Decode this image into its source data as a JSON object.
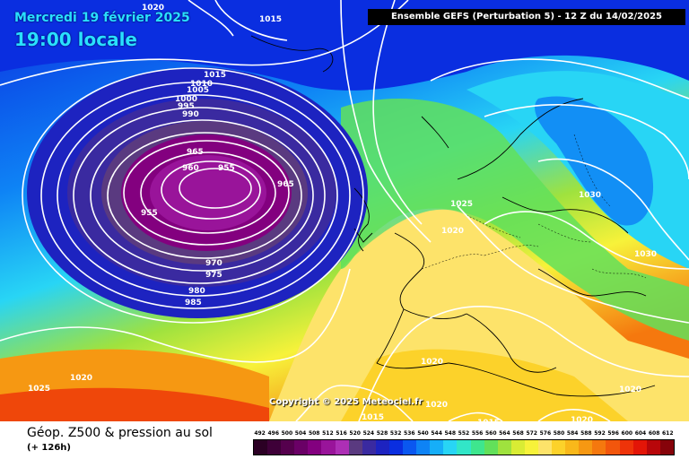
{
  "header": {
    "date": "Mercredi 19 février 2025",
    "time": "19:00 locale",
    "run": "Ensemble GEFS  (Perturbation 5)  -  12 Z du 14/02/2025"
  },
  "copyright": "Copyright © 2025 Meteociel.fr",
  "legend": {
    "title": "Géop. Z500 & pression au sol",
    "subtitle": "(+ 126h)",
    "scale": [
      {
        "value": "492",
        "color": "#2b0024"
      },
      {
        "value": "496",
        "color": "#3e0038"
      },
      {
        "value": "500",
        "color": "#55004d"
      },
      {
        "value": "504",
        "color": "#6a0066"
      },
      {
        "value": "508",
        "color": "#83007f"
      },
      {
        "value": "512",
        "color": "#99149a"
      },
      {
        "value": "516",
        "color": "#ad2fb5"
      },
      {
        "value": "520",
        "color": "#5a3a80"
      },
      {
        "value": "524",
        "color": "#3a2aa0"
      },
      {
        "value": "528",
        "color": "#1d23c0"
      },
      {
        "value": "532",
        "color": "#0a2ee0"
      },
      {
        "value": "536",
        "color": "#0a57f0"
      },
      {
        "value": "540",
        "color": "#0e83f5"
      },
      {
        "value": "544",
        "color": "#16aef8"
      },
      {
        "value": "548",
        "color": "#28d5f5"
      },
      {
        "value": "552",
        "color": "#32e6c8"
      },
      {
        "value": "556",
        "color": "#3ee68e"
      },
      {
        "value": "560",
        "color": "#62e05a"
      },
      {
        "value": "564",
        "color": "#9fe23e"
      },
      {
        "value": "568",
        "color": "#d9ec34"
      },
      {
        "value": "572",
        "color": "#f7f23a"
      },
      {
        "value": "576",
        "color": "#fde36a"
      },
      {
        "value": "580",
        "color": "#fcd22a"
      },
      {
        "value": "584",
        "color": "#f9b81a"
      },
      {
        "value": "588",
        "color": "#f69812"
      },
      {
        "value": "592",
        "color": "#f5780e"
      },
      {
        "value": "596",
        "color": "#f2560c"
      },
      {
        "value": "600",
        "color": "#ee3309"
      },
      {
        "value": "604",
        "color": "#e31507"
      },
      {
        "value": "608",
        "color": "#b8060a"
      },
      {
        "value": "612",
        "color": "#86030a"
      }
    ]
  },
  "isobar_labels": [
    "1020",
    "1015",
    "1015",
    "1010",
    "1005",
    "1000",
    "995",
    "990",
    "965",
    "960",
    "955",
    "965",
    "955",
    "970",
    "975",
    "980",
    "985",
    "1025",
    "1020",
    "1030",
    "1030",
    "1020",
    "1020",
    "1025",
    "1020",
    "1020",
    "1015",
    "1015",
    "1020",
    "1020"
  ]
}
